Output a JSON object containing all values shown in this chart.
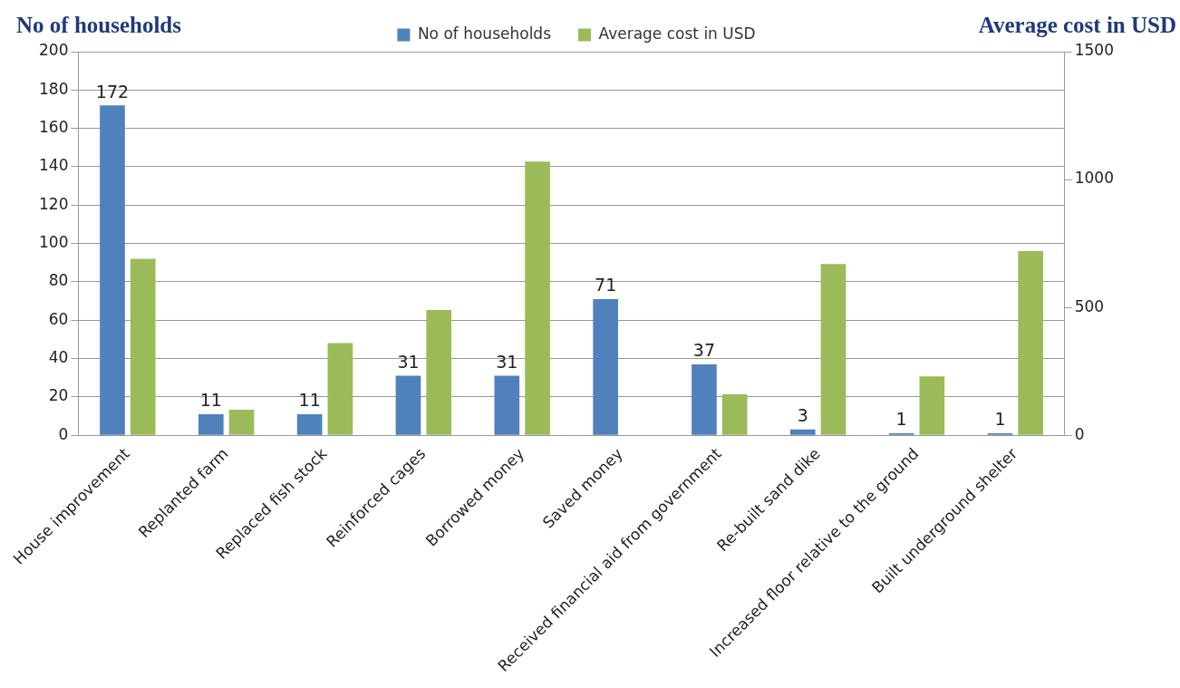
{
  "chart_data": {
    "type": "bar",
    "ylabel": "No of households",
    "y2label": "Average cost in USD",
    "categories": [
      "House improvement",
      "Replanted farm",
      "Replaced fish stock",
      "Reinforced cages",
      "Borrowed money",
      "Saved money",
      "Received financial aid from government",
      "Re-built sand dike",
      "Increased floor relative to the ground",
      "Built underground shelter"
    ],
    "series": [
      {
        "name": "No of households",
        "color": "#4f81bd",
        "values": [
          172,
          11,
          11,
          31,
          31,
          71,
          37,
          3,
          1,
          1
        ],
        "value_labels": [
          "172",
          "11",
          "11",
          "31",
          "31",
          "71",
          "37",
          "3",
          "1",
          "1"
        ]
      },
      {
        "name": "Average cost in USD",
        "color": "#9bbb59",
        "axis": "y2",
        "values": [
          690,
          100,
          360,
          490,
          1070,
          null,
          160,
          670,
          230,
          720
        ]
      }
    ],
    "ylim": [
      0,
      200
    ],
    "yticks": [
      0,
      20,
      40,
      60,
      80,
      100,
      120,
      140,
      160,
      180,
      200
    ],
    "y2lim": [
      0,
      1500
    ],
    "y2ticks": [
      0,
      500,
      1000,
      1500
    ],
    "grid": "y",
    "legend": "top"
  }
}
